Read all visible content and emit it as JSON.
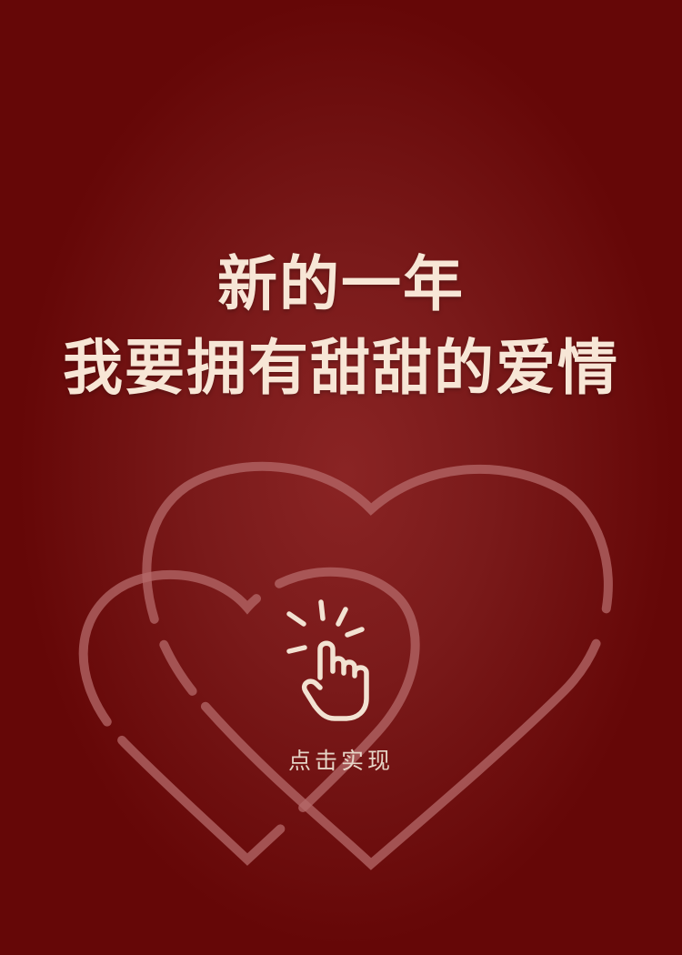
{
  "headline": {
    "line1": "新的一年",
    "line2": "我要拥有甜甜的爱情"
  },
  "cta": {
    "label": "点击实现",
    "icon": "tap-hand-icon"
  },
  "decoration": {
    "icon": "double-heart-outline-icon"
  },
  "colors": {
    "background": "#6b0a0a",
    "background_glow": "#8a2424",
    "title_text": "#f7e6d6",
    "heart_stroke": "#b76d6d",
    "cta_text": "#e6d5c7"
  }
}
